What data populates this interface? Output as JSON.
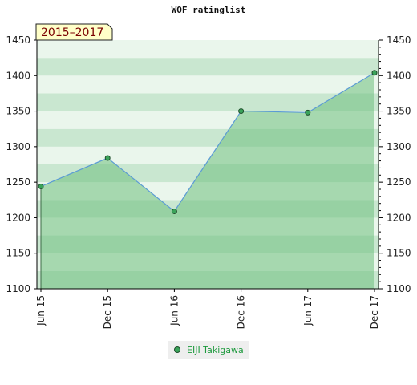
{
  "chart_data": {
    "type": "area",
    "title": "WOF ratinglist",
    "badge": "2015–2017",
    "categories": [
      "Jun 15",
      "Dec 15",
      "Jun 16",
      "Dec 16",
      "Jun 17",
      "Dec 17"
    ],
    "series": [
      {
        "name": "EIJI Takigawa",
        "values": [
          1244,
          1284,
          1209,
          1350,
          1348,
          1404
        ]
      }
    ],
    "ylim": [
      1100,
      1450
    ],
    "yticks": [
      1100,
      1150,
      1200,
      1250,
      1300,
      1350,
      1400,
      1450
    ],
    "ytick_labels": [
      "1100",
      "1150",
      "1200",
      "1250",
      "1300",
      "1350",
      "1400",
      "1450"
    ],
    "grid": true,
    "legend_position": "bottom",
    "colors": {
      "line": "#5b9bd5",
      "area": "#6dbf7e",
      "point": "#3aa35a",
      "point_border": "#1d4d2a",
      "band_light": "#eaf6ec",
      "band_dark": "#c9e7d0",
      "badge_bg": "#ffffc8"
    }
  }
}
